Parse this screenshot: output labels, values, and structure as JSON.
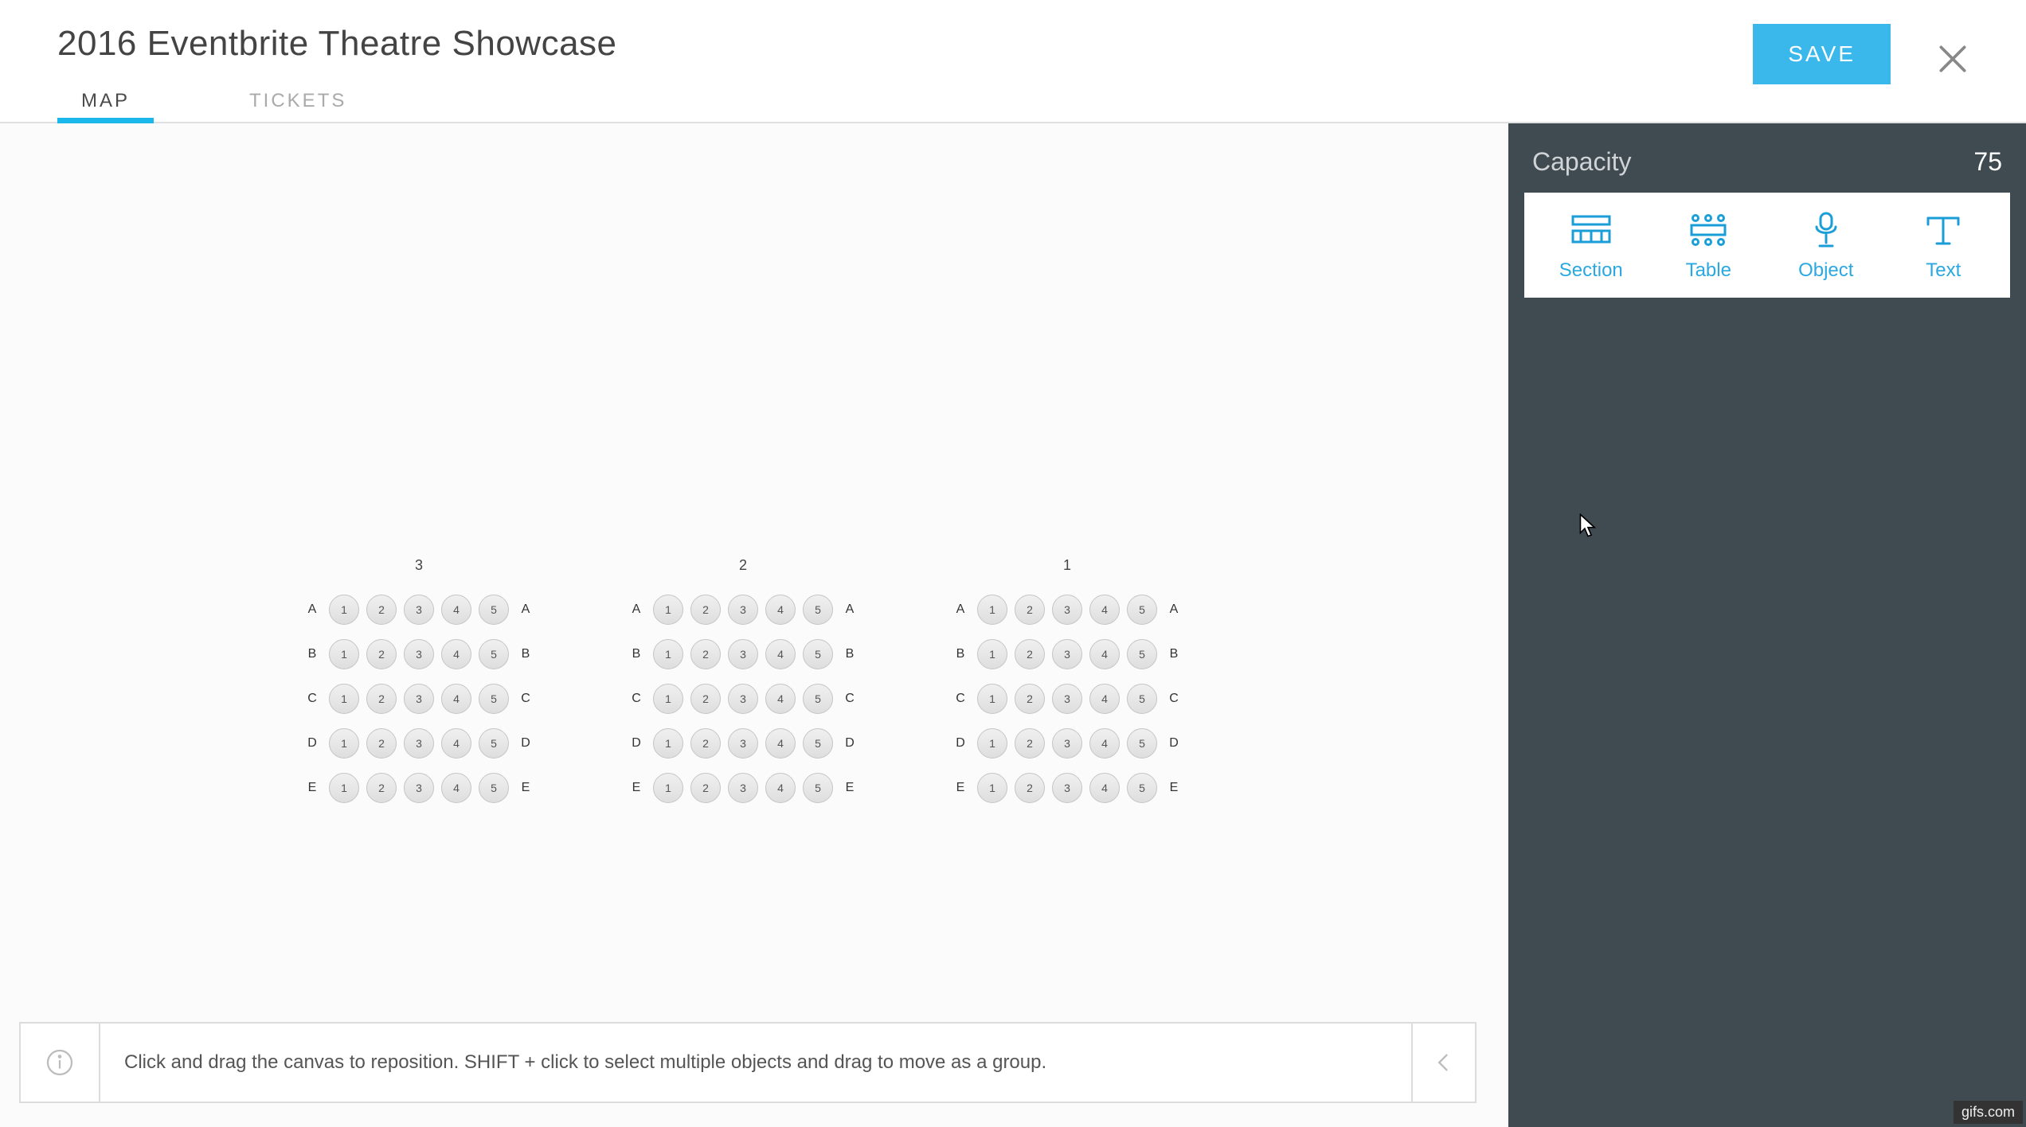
{
  "header": {
    "title": "2016 Eventbrite Theatre Showcase",
    "save_label": "SAVE",
    "tabs": [
      {
        "label": "MAP",
        "active": true
      },
      {
        "label": "TICKETS",
        "active": false
      }
    ]
  },
  "sidebar": {
    "capacity_label": "Capacity",
    "capacity_value": "75",
    "tools": [
      {
        "name": "section",
        "label": "Section"
      },
      {
        "name": "table",
        "label": "Table"
      },
      {
        "name": "object",
        "label": "Object"
      },
      {
        "name": "text",
        "label": "Text"
      }
    ]
  },
  "canvas": {
    "sections": [
      {
        "number": "3",
        "rows": [
          "A",
          "B",
          "C",
          "D",
          "E"
        ],
        "seats_per_row": 5
      },
      {
        "number": "2",
        "rows": [
          "A",
          "B",
          "C",
          "D",
          "E"
        ],
        "seats_per_row": 5
      },
      {
        "number": "1",
        "rows": [
          "A",
          "B",
          "C",
          "D",
          "E"
        ],
        "seats_per_row": 5
      }
    ],
    "hint_text": "Click and drag the canvas to reposition. SHIFT + click to select multiple objects and drag to move as a group."
  },
  "watermark": "gifs.com",
  "colors": {
    "accent": "#1ab7ea",
    "save_bg": "#3ab8eb",
    "sidebar_bg": "#3f4b51",
    "seat_border": "#c5c5c5",
    "hint_border": "#dcdcdc"
  }
}
